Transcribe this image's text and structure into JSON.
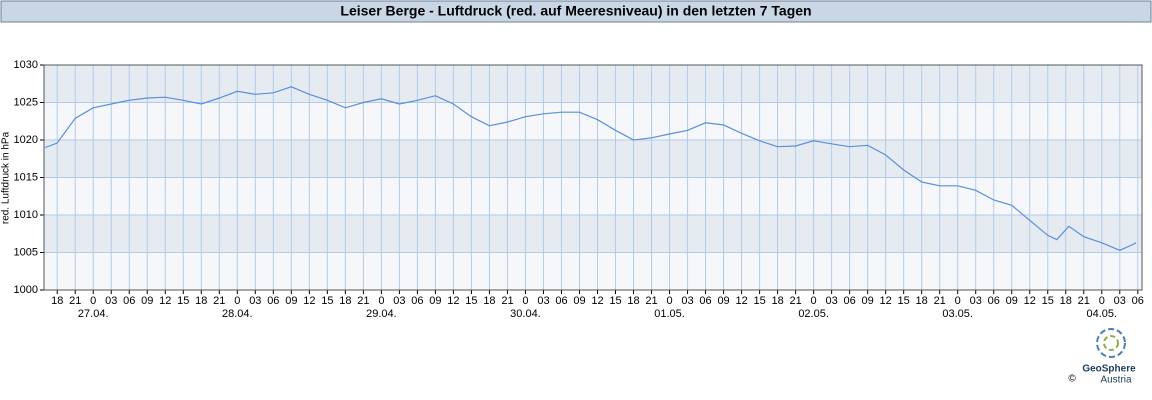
{
  "chart_data": {
    "type": "line",
    "title": "Leiser Berge - Luftdruck (red. auf Meeresniveau) in den letzten 7 Tagen",
    "y_label": "red. Luftdruck in hPa",
    "series": [
      {
        "name": "Luftdruck",
        "color": "#5b8fd9",
        "x": [
          16,
          18,
          21,
          24,
          27,
          30,
          33,
          36,
          39,
          42,
          45,
          48,
          51,
          54,
          57,
          60,
          63,
          66,
          69,
          72,
          75,
          78,
          81,
          84,
          87,
          90,
          93,
          96,
          99,
          102,
          105,
          108,
          111,
          114,
          117,
          120,
          123,
          126,
          129,
          132,
          135,
          138,
          141,
          144,
          147,
          150,
          153,
          156,
          159,
          162,
          165,
          168,
          171,
          174,
          177,
          180,
          183,
          184.5,
          186.5,
          189,
          192,
          195,
          197,
          197.7
        ],
        "values": [
          1019,
          1019.6,
          1022.9,
          1024.3,
          1024.8,
          1025.3,
          1025.6,
          1025.7,
          1025.3,
          1024.8,
          1025.6,
          1026.5,
          1026.1,
          1026.3,
          1027.1,
          1026.1,
          1025.3,
          1024.3,
          1025,
          1025.5,
          1024.8,
          1025.3,
          1025.9,
          1024.8,
          1023.1,
          1021.9,
          1022.4,
          1023.1,
          1023.5,
          1023.7,
          1023.7,
          1022.7,
          1021.3,
          1020,
          1020.3,
          1020.8,
          1021.3,
          1022.3,
          1022,
          1020.9,
          1019.9,
          1019.1,
          1019.2,
          1019.9,
          1019.5,
          1019.1,
          1019.3,
          1018,
          1016,
          1014.4,
          1013.9,
          1013.9,
          1013.3,
          1012,
          1011.3,
          1009.3,
          1007.3,
          1006.7,
          1008.5,
          1007.1,
          1006.3,
          1005.3,
          1006,
          1006.3
        ]
      }
    ],
    "xlim": [
      15.8,
      198.7
    ],
    "ylim": [
      1000,
      1030
    ],
    "yticks": [
      1000,
      1005,
      1010,
      1015,
      1020,
      1025,
      1030
    ],
    "xticks": [
      {
        "value": 18,
        "label": "18"
      },
      {
        "value": 21,
        "label": "21"
      },
      {
        "value": 24,
        "label": "0"
      },
      {
        "value": 27,
        "label": "03"
      },
      {
        "value": 30,
        "label": "06"
      },
      {
        "value": 33,
        "label": "09"
      },
      {
        "value": 36,
        "label": "12"
      },
      {
        "value": 39,
        "label": "15"
      },
      {
        "value": 42,
        "label": "18"
      },
      {
        "value": 45,
        "label": "21"
      },
      {
        "value": 48,
        "label": "0"
      },
      {
        "value": 51,
        "label": "03"
      },
      {
        "value": 54,
        "label": "06"
      },
      {
        "value": 57,
        "label": "09"
      },
      {
        "value": 60,
        "label": "12"
      },
      {
        "value": 63,
        "label": "15"
      },
      {
        "value": 66,
        "label": "18"
      },
      {
        "value": 69,
        "label": "21"
      },
      {
        "value": 72,
        "label": "0"
      },
      {
        "value": 75,
        "label": "03"
      },
      {
        "value": 78,
        "label": "06"
      },
      {
        "value": 81,
        "label": "09"
      },
      {
        "value": 84,
        "label": "12"
      },
      {
        "value": 87,
        "label": "15"
      },
      {
        "value": 90,
        "label": "18"
      },
      {
        "value": 93,
        "label": "21"
      },
      {
        "value": 96,
        "label": "0"
      },
      {
        "value": 99,
        "label": "03"
      },
      {
        "value": 102,
        "label": "06"
      },
      {
        "value": 105,
        "label": "09"
      },
      {
        "value": 108,
        "label": "12"
      },
      {
        "value": 111,
        "label": "15"
      },
      {
        "value": 114,
        "label": "18"
      },
      {
        "value": 117,
        "label": "21"
      },
      {
        "value": 120,
        "label": "0"
      },
      {
        "value": 123,
        "label": "03"
      },
      {
        "value": 126,
        "label": "06"
      },
      {
        "value": 129,
        "label": "09"
      },
      {
        "value": 132,
        "label": "12"
      },
      {
        "value": 135,
        "label": "15"
      },
      {
        "value": 138,
        "label": "18"
      },
      {
        "value": 141,
        "label": "21"
      },
      {
        "value": 144,
        "label": "0"
      },
      {
        "value": 147,
        "label": "03"
      },
      {
        "value": 150,
        "label": "06"
      },
      {
        "value": 153,
        "label": "09"
      },
      {
        "value": 156,
        "label": "12"
      },
      {
        "value": 159,
        "label": "15"
      },
      {
        "value": 162,
        "label": "18"
      },
      {
        "value": 165,
        "label": "21"
      },
      {
        "value": 168,
        "label": "0"
      },
      {
        "value": 171,
        "label": "03"
      },
      {
        "value": 174,
        "label": "06"
      },
      {
        "value": 177,
        "label": "09"
      },
      {
        "value": 180,
        "label": "12"
      },
      {
        "value": 183,
        "label": "15"
      },
      {
        "value": 186,
        "label": "18"
      },
      {
        "value": 189,
        "label": "21"
      },
      {
        "value": 192,
        "label": "0"
      },
      {
        "value": 195,
        "label": "03"
      },
      {
        "value": 198,
        "label": "06"
      }
    ],
    "day_labels": [
      {
        "value": 24,
        "label": "27.04."
      },
      {
        "value": 48,
        "label": "28.04."
      },
      {
        "value": 72,
        "label": "29.04."
      },
      {
        "value": 96,
        "label": "30.04."
      },
      {
        "value": 120,
        "label": "01.05."
      },
      {
        "value": 144,
        "label": "02.05."
      },
      {
        "value": 168,
        "label": "03.05."
      },
      {
        "value": 192,
        "label": "04.05."
      }
    ],
    "grid": true,
    "band_colors": [
      "#e6ebf2",
      "#f5f7fa"
    ]
  },
  "logo": {
    "name": "GeoSphere",
    "sub": "Austria",
    "copyright": "©"
  }
}
